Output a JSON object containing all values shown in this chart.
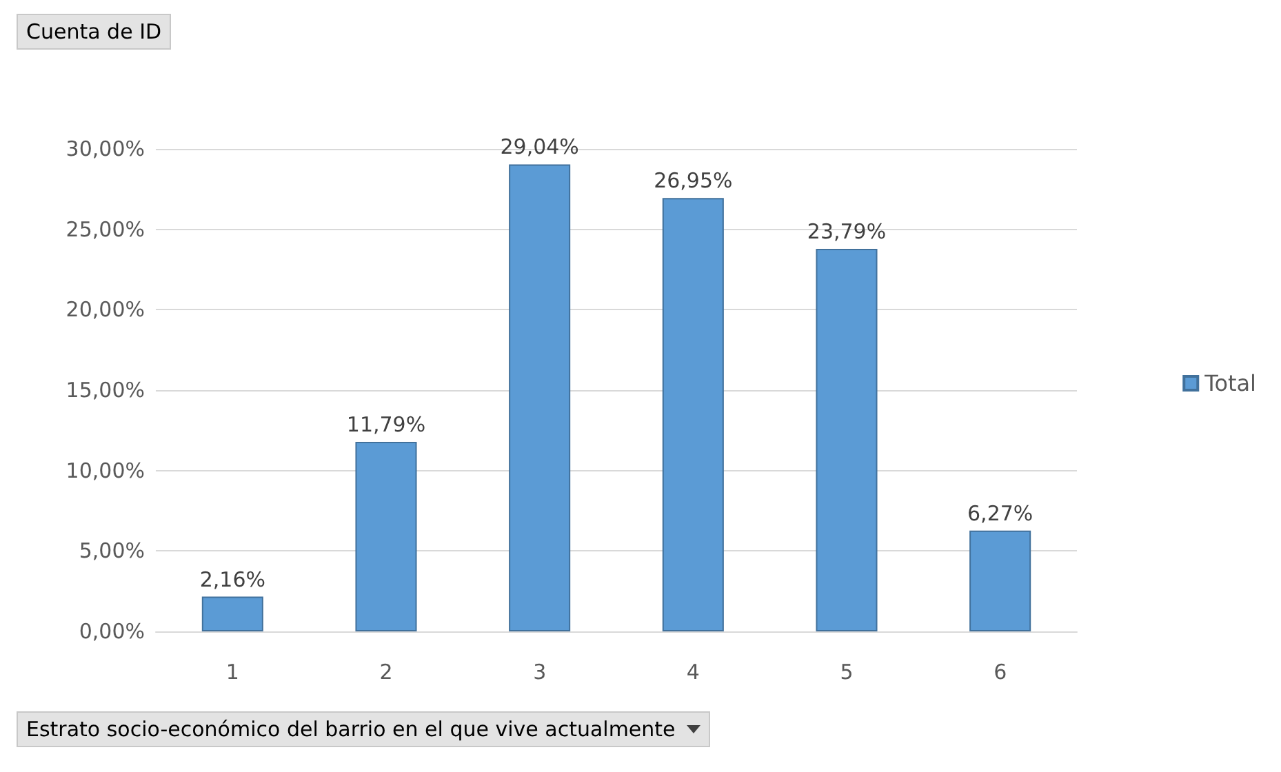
{
  "chart_data": {
    "type": "bar",
    "title": "Cuenta de ID",
    "xlabel": "Estrato socio-económico del barrio en el que vive actualmente",
    "categories": [
      "1",
      "2",
      "3",
      "4",
      "5",
      "6"
    ],
    "series": [
      {
        "name": "Total",
        "color": "#5b9bd5",
        "values": [
          2.16,
          11.79,
          29.04,
          26.95,
          23.79,
          6.27
        ],
        "value_labels": [
          "2,16%",
          "11,79%",
          "29,04%",
          "26,95%",
          "23,79%",
          "6,27%"
        ]
      }
    ],
    "ylim": [
      0,
      30
    ],
    "yticks": [
      {
        "value": 0,
        "label": "0,00%"
      },
      {
        "value": 5,
        "label": "5,00%"
      },
      {
        "value": 10,
        "label": "10,00%"
      },
      {
        "value": 15,
        "label": "15,00%"
      },
      {
        "value": 20,
        "label": "20,00%"
      },
      {
        "value": 25,
        "label": "25,00%"
      },
      {
        "value": 30,
        "label": "30,00%"
      }
    ],
    "grid": "y",
    "legend": "right"
  }
}
